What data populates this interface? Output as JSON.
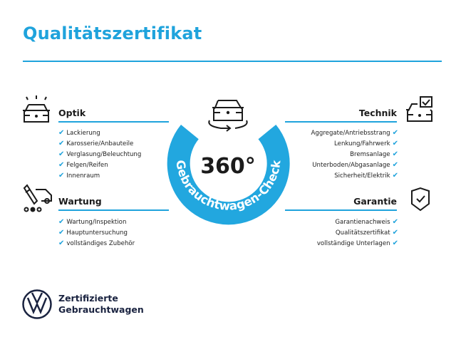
{
  "title": "Qualitätszertifikat",
  "colors": {
    "accent": "#1fa3dc",
    "text": "#1b1b1b",
    "logo": "#1a2340"
  },
  "center": {
    "big_text": "360°",
    "ring_text": "Gebrauchtwagen-Check",
    "icon": "car-rotate-icon"
  },
  "sections": {
    "optik": {
      "title": "Optik",
      "icon": "car-lights-icon",
      "items": [
        "Lackierung",
        "Karosserie/Anbauteile",
        "Verglasung/Beleuchtung",
        "Felgen/Reifen",
        "Innenraum"
      ]
    },
    "wartung": {
      "title": "Wartung",
      "icon": "service-tools-icon",
      "items": [
        "Wartung/Inspektion",
        "Hauptuntersuchung",
        "vollständiges Zubehör"
      ]
    },
    "technik": {
      "title": "Technik",
      "icon": "car-checkbox-icon",
      "items": [
        "Aggregate/Antriebsstrang",
        "Lenkung/Fahrwerk",
        "Bremsanlage",
        "Unterboden/Abgasanlage",
        "Sicherheit/Elektrik"
      ]
    },
    "garantie": {
      "title": "Garantie",
      "icon": "shield-check-icon",
      "items": [
        "Garantienachweis",
        "Qualitätszertifikat",
        "vollständige Unterlagen"
      ]
    }
  },
  "check_mark": "✔",
  "brand": {
    "line1": "Zertifizierte",
    "line2": "Gebrauchtwagen",
    "logo": "vw-logo"
  }
}
